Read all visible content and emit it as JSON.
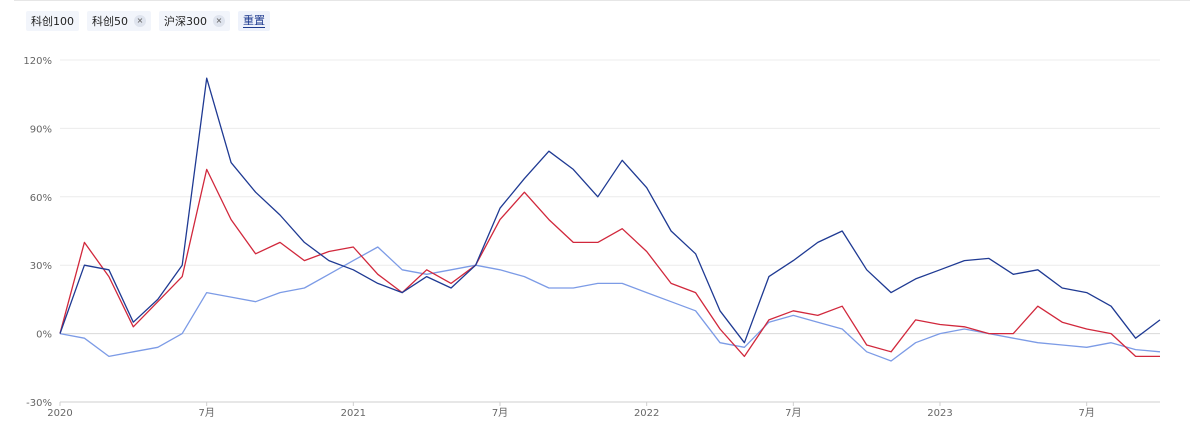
{
  "filters": [
    {
      "label": "科创100",
      "removable": false
    },
    {
      "label": "科创50",
      "removable": true
    },
    {
      "label": "沪深300",
      "removable": true
    }
  ],
  "close_glyph": "×",
  "reset_label": "重置",
  "chart_data": {
    "type": "line",
    "title": "",
    "xlabel": "",
    "ylabel": "",
    "x_range": [
      "2020-01",
      "2023-10"
    ],
    "ylim": [
      -30,
      120
    ],
    "y_ticks": [
      -30,
      0,
      30,
      60,
      90,
      120
    ],
    "y_tick_labels": [
      "-30%",
      "0%",
      "30%",
      "60%",
      "90%",
      "120%"
    ],
    "x_ticks": [
      {
        "x": "2020-01",
        "label": "2020"
      },
      {
        "x": "2020-07",
        "label": "7月"
      },
      {
        "x": "2021-01",
        "label": "2021"
      },
      {
        "x": "2021-07",
        "label": "7月"
      },
      {
        "x": "2022-01",
        "label": "2022"
      },
      {
        "x": "2022-07",
        "label": "7月"
      },
      {
        "x": "2023-01",
        "label": "2023"
      },
      {
        "x": "2023-07",
        "label": "7月"
      }
    ],
    "grid": true,
    "series": [
      {
        "name": "科创100",
        "color": "#1f3a93",
        "x": [
          "2020-01",
          "2020-02",
          "2020-03",
          "2020-04",
          "2020-05",
          "2020-06",
          "2020-07",
          "2020-08",
          "2020-09",
          "2020-10",
          "2020-11",
          "2020-12",
          "2021-01",
          "2021-02",
          "2021-03",
          "2021-04",
          "2021-05",
          "2021-06",
          "2021-07",
          "2021-08",
          "2021-09",
          "2021-10",
          "2021-11",
          "2021-12",
          "2022-01",
          "2022-02",
          "2022-03",
          "2022-04",
          "2022-05",
          "2022-06",
          "2022-07",
          "2022-08",
          "2022-09",
          "2022-10",
          "2022-11",
          "2022-12",
          "2023-01",
          "2023-02",
          "2023-03",
          "2023-04",
          "2023-05",
          "2023-06",
          "2023-07",
          "2023-08",
          "2023-09",
          "2023-10"
        ],
        "values": [
          0,
          30,
          28,
          5,
          15,
          30,
          112,
          75,
          62,
          52,
          40,
          32,
          28,
          22,
          18,
          25,
          20,
          30,
          55,
          68,
          80,
          72,
          60,
          76,
          64,
          45,
          35,
          10,
          -4,
          25,
          32,
          40,
          45,
          28,
          18,
          24,
          28,
          32,
          33,
          26,
          28,
          20,
          18,
          12,
          -2,
          6
        ]
      },
      {
        "name": "科创50",
        "color": "#d1283c",
        "x": [
          "2020-01",
          "2020-02",
          "2020-03",
          "2020-04",
          "2020-05",
          "2020-06",
          "2020-07",
          "2020-08",
          "2020-09",
          "2020-10",
          "2020-11",
          "2020-12",
          "2021-01",
          "2021-02",
          "2021-03",
          "2021-04",
          "2021-05",
          "2021-06",
          "2021-07",
          "2021-08",
          "2021-09",
          "2021-10",
          "2021-11",
          "2021-12",
          "2022-01",
          "2022-02",
          "2022-03",
          "2022-04",
          "2022-05",
          "2022-06",
          "2022-07",
          "2022-08",
          "2022-09",
          "2022-10",
          "2022-11",
          "2022-12",
          "2023-01",
          "2023-02",
          "2023-03",
          "2023-04",
          "2023-05",
          "2023-06",
          "2023-07",
          "2023-08",
          "2023-09",
          "2023-10"
        ],
        "values": [
          0,
          40,
          25,
          3,
          14,
          25,
          72,
          50,
          35,
          40,
          32,
          36,
          38,
          26,
          18,
          28,
          22,
          30,
          50,
          62,
          50,
          40,
          40,
          46,
          36,
          22,
          18,
          2,
          -10,
          6,
          10,
          8,
          12,
          -5,
          -8,
          6,
          4,
          3,
          0,
          0,
          12,
          5,
          2,
          0,
          -10,
          -10
        ]
      },
      {
        "name": "沪深300",
        "color": "#7c9be6",
        "x": [
          "2020-01",
          "2020-02",
          "2020-03",
          "2020-04",
          "2020-05",
          "2020-06",
          "2020-07",
          "2020-08",
          "2020-09",
          "2020-10",
          "2020-11",
          "2020-12",
          "2021-01",
          "2021-02",
          "2021-03",
          "2021-04",
          "2021-05",
          "2021-06",
          "2021-07",
          "2021-08",
          "2021-09",
          "2021-10",
          "2021-11",
          "2021-12",
          "2022-01",
          "2022-02",
          "2022-03",
          "2022-04",
          "2022-05",
          "2022-06",
          "2022-07",
          "2022-08",
          "2022-09",
          "2022-10",
          "2022-11",
          "2022-12",
          "2023-01",
          "2023-02",
          "2023-03",
          "2023-04",
          "2023-05",
          "2023-06",
          "2023-07",
          "2023-08",
          "2023-09",
          "2023-10"
        ],
        "values": [
          0,
          -2,
          -10,
          -8,
          -6,
          0,
          18,
          16,
          14,
          18,
          20,
          26,
          32,
          38,
          28,
          26,
          28,
          30,
          28,
          25,
          20,
          20,
          22,
          22,
          18,
          14,
          10,
          -4,
          -6,
          5,
          8,
          5,
          2,
          -8,
          -12,
          -4,
          0,
          2,
          0,
          -2,
          -4,
          -5,
          -6,
          -4,
          -7,
          -8
        ]
      }
    ]
  }
}
